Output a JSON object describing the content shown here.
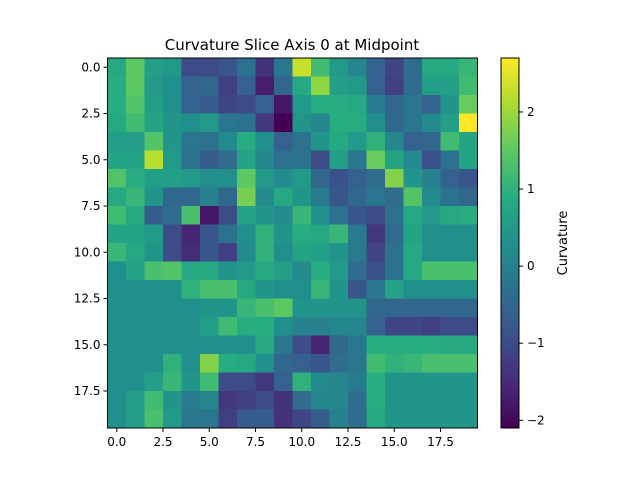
{
  "chart_data": {
    "type": "heatmap",
    "title": "Curvature Slice Axis 0 at Midpoint",
    "xlabel": "",
    "ylabel": "",
    "colorbar_label": "Curvature",
    "colormap": "viridis",
    "vmin": -2.1,
    "vmax": 2.7,
    "rows": 20,
    "cols": 20,
    "x_ticks": [
      "0.0",
      "2.5",
      "5.0",
      "7.5",
      "10.0",
      "12.5",
      "15.0",
      "17.5"
    ],
    "x_tick_values": [
      0,
      2.5,
      5,
      7.5,
      10,
      12.5,
      15,
      17.5
    ],
    "y_ticks": [
      "0.0",
      "2.5",
      "5.0",
      "7.5",
      "10.0",
      "12.5",
      "15.0",
      "17.5"
    ],
    "y_tick_values": [
      0,
      2.5,
      5,
      7.5,
      10,
      12.5,
      15,
      17.5
    ],
    "colorbar_ticks": [
      "2",
      "1",
      "0",
      "−1",
      "−2"
    ],
    "colorbar_tick_values": [
      2,
      1,
      0,
      -1,
      -2
    ],
    "values": [
      [
        0.8,
        1.5,
        0.6,
        0.5,
        -1.0,
        -1.0,
        -0.8,
        -0.3,
        -1.4,
        -0.2,
        2.3,
        1.2,
        0.5,
        0.1,
        -0.6,
        -1.1,
        -0.4,
        0.8,
        0.8,
        1.1
      ],
      [
        0.9,
        1.5,
        0.5,
        0.3,
        -0.6,
        -0.5,
        -1.2,
        -0.6,
        -1.7,
        -0.5,
        0.8,
        1.9,
        0.6,
        0.5,
        -0.6,
        -1.2,
        -0.4,
        0.6,
        0.6,
        1.2
      ],
      [
        0.9,
        1.4,
        0.6,
        0.3,
        -0.6,
        -0.7,
        -1.1,
        -1.0,
        -0.6,
        -1.8,
        0.5,
        0.9,
        0.9,
        0.8,
        -0.1,
        -0.5,
        -0.2,
        -0.6,
        0.4,
        1.6
      ],
      [
        0.8,
        1.2,
        0.7,
        0.4,
        0.3,
        0.5,
        -0.2,
        -0.3,
        -1.3,
        -2.1,
        0.4,
        0.1,
        0.9,
        0.9,
        0.3,
        -0.5,
        -0.2,
        0.2,
        0.6,
        2.7
      ],
      [
        0.6,
        0.6,
        1.4,
        0.4,
        -0.2,
        -0.3,
        0.2,
        0.9,
        0.3,
        -0.6,
        -0.3,
        0.4,
        0.8,
        0.5,
        1.0,
        0.1,
        -0.6,
        -0.5,
        1.2,
        0.7
      ],
      [
        0.7,
        0.7,
        2.2,
        0.5,
        -0.3,
        -0.7,
        -0.4,
        0.7,
        0.1,
        -0.3,
        -0.3,
        -1.0,
        0.6,
        -0.2,
        1.6,
        0.7,
        0.2,
        -0.9,
        -0.3,
        0.7
      ],
      [
        1.4,
        0.9,
        0.6,
        0.6,
        0.5,
        0.3,
        0.3,
        1.5,
        0.5,
        0.2,
        0.5,
        -0.5,
        -0.9,
        -0.6,
        -0.4,
        1.8,
        0.4,
        0.0,
        -0.6,
        -0.8
      ],
      [
        0.8,
        1.1,
        0.4,
        -0.5,
        -0.5,
        0.0,
        -0.5,
        1.7,
        0.2,
        0.8,
        0.4,
        -0.1,
        -0.8,
        -0.5,
        -0.2,
        -0.4,
        1.4,
        0.2,
        -0.3,
        -0.5
      ],
      [
        1.2,
        0.8,
        -0.7,
        -0.4,
        1.3,
        -1.8,
        -1.0,
        0.7,
        0.4,
        0.2,
        1.1,
        0.3,
        -0.3,
        -0.8,
        -1.0,
        -0.3,
        0.8,
        0.5,
        0.8,
        0.9
      ],
      [
        0.7,
        0.7,
        0.5,
        -1.0,
        -1.6,
        -0.8,
        -0.3,
        0.3,
        1.0,
        0.4,
        0.9,
        0.8,
        1.1,
        -0.1,
        -1.3,
        -0.4,
        0.7,
        0.3,
        0.3,
        0.3
      ],
      [
        1.1,
        0.8,
        0.4,
        -1.0,
        -1.5,
        -0.8,
        -1.2,
        0.2,
        1.0,
        0.3,
        0.7,
        0.6,
        0.4,
        -0.1,
        -1.1,
        -0.3,
        0.8,
        0.3,
        0.3,
        0.3
      ],
      [
        0.3,
        0.7,
        1.3,
        1.4,
        0.8,
        0.8,
        0.4,
        0.5,
        0.8,
        0.6,
        0.2,
        0.9,
        0.5,
        -0.4,
        -0.9,
        -0.3,
        0.8,
        1.3,
        1.3,
        1.3
      ],
      [
        0.3,
        0.3,
        0.3,
        0.3,
        1.0,
        1.3,
        1.3,
        0.8,
        0.4,
        0.3,
        0.3,
        1.1,
        0.4,
        -0.8,
        -0.2,
        0.7,
        0.3,
        0.3,
        0.3,
        0.3
      ],
      [
        0.3,
        0.3,
        0.3,
        0.3,
        0.3,
        0.4,
        0.4,
        1.1,
        1.3,
        1.5,
        0.4,
        0.4,
        0.4,
        0.4,
        -0.5,
        -0.5,
        -0.5,
        -0.5,
        -0.5,
        -0.5
      ],
      [
        0.3,
        0.3,
        0.3,
        0.3,
        0.3,
        0.6,
        1.2,
        0.9,
        0.9,
        0.3,
        0.0,
        0.0,
        0.1,
        0.1,
        -0.6,
        -1.1,
        -1.1,
        -1.2,
        -1.0,
        -1.0
      ],
      [
        0.3,
        0.3,
        0.3,
        0.3,
        0.3,
        0.3,
        0.3,
        0.3,
        0.8,
        -0.2,
        -1.0,
        -1.6,
        -0.5,
        -0.2,
        0.9,
        0.9,
        0.9,
        0.9,
        0.8,
        0.8
      ],
      [
        0.3,
        0.3,
        0.3,
        1.0,
        0.3,
        1.8,
        0.9,
        0.8,
        0.3,
        -0.5,
        -0.6,
        -0.8,
        -0.4,
        -0.2,
        1.2,
        1.0,
        1.1,
        1.3,
        1.3,
        1.3
      ],
      [
        0.3,
        0.3,
        0.6,
        1.1,
        0.4,
        1.2,
        -1.0,
        -1.0,
        -1.3,
        -0.6,
        1.0,
        0.2,
        0.1,
        -0.1,
        0.9,
        0.4,
        0.4,
        0.4,
        0.4,
        0.4
      ],
      [
        0.3,
        0.6,
        1.2,
        0.4,
        -0.1,
        0.1,
        -1.3,
        -1.2,
        -1.0,
        -1.4,
        -0.4,
        0.1,
        0.1,
        -0.4,
        0.9,
        0.4,
        0.4,
        0.4,
        0.4,
        0.4
      ],
      [
        0.3,
        0.6,
        1.3,
        0.5,
        -0.2,
        -0.2,
        -1.2,
        -0.7,
        -0.7,
        -1.4,
        -1.1,
        -0.7,
        0.0,
        -0.4,
        0.8,
        0.4,
        0.4,
        0.4,
        0.4,
        0.4
      ]
    ]
  }
}
